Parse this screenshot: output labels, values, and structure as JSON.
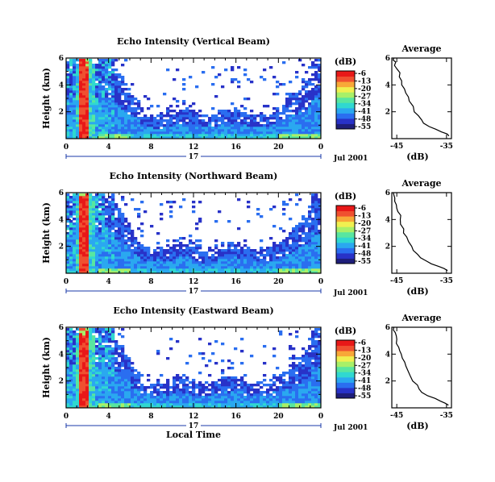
{
  "colors": {
    "scale": [
      "#1e1e7a",
      "#2832c8",
      "#2a6ef0",
      "#2aa8f0",
      "#30d8d0",
      "#58e6a0",
      "#a8f068",
      "#f0f050",
      "#f8a838",
      "#f05030",
      "#e81818"
    ]
  },
  "chart_data": [
    {
      "type": "heatmap",
      "title": "Echo Intensity (Vertical Beam)",
      "ylabel": "Height (km)",
      "xlabel": "",
      "x_ticks": [
        "0",
        "4",
        "8",
        "12",
        "16",
        "20",
        "0"
      ],
      "xlim": [
        0,
        24
      ],
      "y_ticks": [
        "2",
        "4",
        "6"
      ],
      "ylim": [
        0,
        6
      ],
      "date_marker": "17",
      "date_label": "Jul 2001",
      "colorbar": {
        "label": "(dB)",
        "ticks": [
          "-6",
          "-13",
          "-20",
          "-27",
          "-34",
          "-41",
          "-48",
          "-55"
        ]
      },
      "profile": {
        "title": "Average",
        "xlabel": "(dB)",
        "x_ticks": [
          "-45",
          "-35"
        ],
        "xlim": [
          -46,
          -34
        ],
        "y_ticks": [
          "2",
          "4",
          "6"
        ],
        "ylim": [
          0,
          6
        ],
        "x": [
          -34.5,
          -36,
          -38.5,
          -40,
          -41.5,
          -42.5,
          -43.2,
          -44,
          -44.5,
          -45,
          -45.2,
          -45.6
        ],
        "y": [
          0.2,
          0.5,
          0.9,
          1.4,
          2.0,
          2.8,
          3.4,
          4.0,
          4.6,
          5.2,
          5.7,
          6.0
        ]
      }
    },
    {
      "type": "heatmap",
      "title": "Echo Intensity (Northward Beam)",
      "ylabel": "Height (km)",
      "xlabel": "",
      "x_ticks": [
        "0",
        "4",
        "8",
        "12",
        "16",
        "20",
        "0"
      ],
      "xlim": [
        0,
        24
      ],
      "y_ticks": [
        "2",
        "4",
        "6"
      ],
      "ylim": [
        0,
        6
      ],
      "date_marker": "17",
      "date_label": "Jul 2001",
      "colorbar": {
        "label": "(dB)",
        "ticks": [
          "-6",
          "-13",
          "-20",
          "-27",
          "-34",
          "-41",
          "-48",
          "-55"
        ]
      },
      "profile": {
        "title": "Average",
        "xlabel": "(dB)",
        "x_ticks": [
          "-45",
          "-35"
        ],
        "xlim": [
          -46,
          -34
        ],
        "y_ticks": [
          "2",
          "4",
          "6"
        ],
        "ylim": [
          0,
          6
        ],
        "x": [
          -34.8,
          -36.5,
          -39,
          -40.8,
          -42,
          -43,
          -43.6,
          -44.3,
          -44.8,
          -45.1,
          -45.4,
          -45.7
        ],
        "y": [
          0.2,
          0.5,
          0.9,
          1.4,
          2.0,
          2.7,
          3.3,
          4.0,
          4.6,
          5.1,
          5.6,
          6.0
        ]
      }
    },
    {
      "type": "heatmap",
      "title": "Echo Intensity (Eastward Beam)",
      "ylabel": "Height (km)",
      "xlabel": "Local Time",
      "x_ticks": [
        "0",
        "4",
        "8",
        "12",
        "16",
        "20",
        "0"
      ],
      "xlim": [
        0,
        24
      ],
      "y_ticks": [
        "2",
        "4",
        "6"
      ],
      "ylim": [
        0,
        6
      ],
      "date_marker": "17",
      "date_label": "Jul 2001",
      "colorbar": {
        "label": "(dB)",
        "ticks": [
          "-6",
          "-13",
          "-20",
          "-27",
          "-34",
          "-41",
          "-48",
          "-55"
        ]
      },
      "profile": {
        "title": "Average",
        "xlabel": "(dB)",
        "x_ticks": [
          "-45",
          "-35"
        ],
        "xlim": [
          -46,
          -34
        ],
        "y_ticks": [
          "2",
          "4",
          "6"
        ],
        "ylim": [
          0,
          6
        ],
        "x": [
          -34.6,
          -36.2,
          -38.8,
          -40.5,
          -41.8,
          -42.8,
          -43.4,
          -44.1,
          -44.6,
          -45,
          -45.3,
          -45.6
        ],
        "y": [
          0.2,
          0.5,
          0.9,
          1.4,
          2.0,
          2.8,
          3.4,
          4.0,
          4.5,
          5.1,
          5.6,
          6.0
        ]
      }
    }
  ]
}
